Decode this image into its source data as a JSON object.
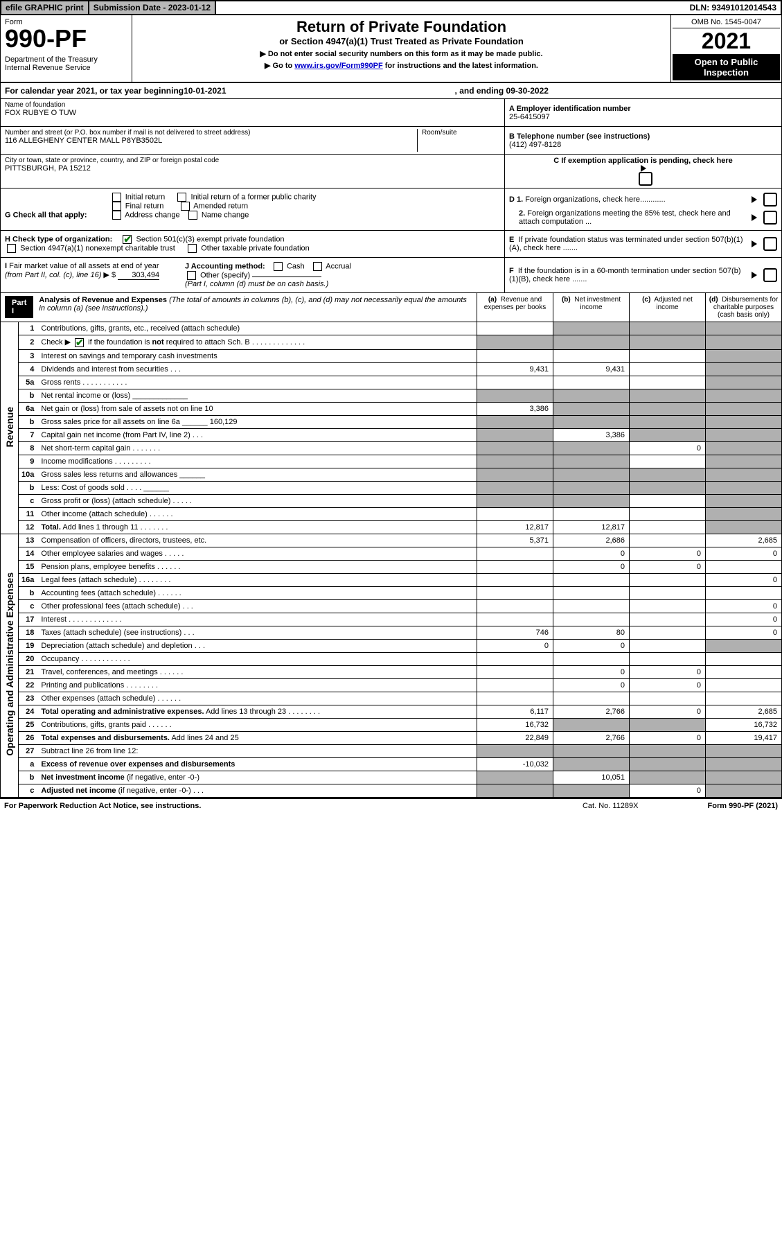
{
  "topbar": {
    "efile": "efile GRAPHIC print",
    "submission": "Submission Date - 2023-01-12",
    "dln": "DLN: 93491012014543"
  },
  "header": {
    "form_label": "Form",
    "form_no": "990-PF",
    "dept": "Department of the Treasury\nInternal Revenue Service",
    "title": "Return of Private Foundation",
    "subtitle": "or Section 4947(a)(1) Trust Treated as Private Foundation",
    "instr1": "▶ Do not enter social security numbers on this form as it may be made public.",
    "instr2_pre": "▶ Go to ",
    "instr2_link": "www.irs.gov/Form990PF",
    "instr2_post": " for instructions and the latest information.",
    "omb": "OMB No. 1545-0047",
    "year": "2021",
    "open_public": "Open to Public Inspection"
  },
  "calendar": {
    "text_pre": "For calendar year 2021, or tax year beginning ",
    "begin": "10-01-2021",
    "text_mid": ", and ending ",
    "end": "09-30-2022"
  },
  "entity": {
    "name_label": "Name of foundation",
    "name": "FOX RUBYE O TUW",
    "addr_label": "Number and street (or P.O. box number if mail is not delivered to street address)",
    "addr": "116 ALLEGHENY CENTER MALL P8YB3502L",
    "room_label": "Room/suite",
    "city_label": "City or town, state or province, country, and ZIP or foreign postal code",
    "city": "PITTSBURGH, PA  15212",
    "ein_label": "A Employer identification number",
    "ein": "25-6415097",
    "phone_label": "B Telephone number (see instructions)",
    "phone": "(412) 497-8128",
    "c_label": "C If exemption application is pending, check here"
  },
  "checks": {
    "g_label": "G Check all that apply:",
    "g_opts": [
      "Initial return",
      "Initial return of a former public charity",
      "Final return",
      "Amended return",
      "Address change",
      "Name change"
    ],
    "h_label": "H Check type of organization:",
    "h_opts": [
      "Section 501(c)(3) exempt private foundation",
      "Section 4947(a)(1) nonexempt charitable trust",
      "Other taxable private foundation"
    ],
    "i_label": "I Fair market value of all assets at end of year (from Part II, col. (c), line 16) ▶ $",
    "i_value": "303,494",
    "j_label": "J Accounting method:",
    "j_opts": [
      "Cash",
      "Accrual",
      "Other (specify)"
    ],
    "j_note": "(Part I, column (d) must be on cash basis.)",
    "d1": "D 1. Foreign organizations, check here............",
    "d2": "2. Foreign organizations meeting the 85% test, check here and attach computation ...",
    "e": "E  If private foundation status was terminated under section 507(b)(1)(A), check here .......",
    "f": "F  If the foundation is in a 60-month termination under section 507(b)(1)(B), check here .......",
    "schb": "Check ▶ ✔ if the foundation is not required to attach Sch. B"
  },
  "part1": {
    "label": "Part I",
    "title": "Analysis of Revenue and Expenses",
    "note": "(The total of amounts in columns (b), (c), and (d) may not necessarily equal the amounts in column (a) (see instructions).)",
    "cols": {
      "a": "(a)  Revenue and expenses per books",
      "b": "(b)  Net investment income",
      "c": "(c)  Adjusted net income",
      "d": "(d)  Disbursements for charitable purposes (cash basis only)"
    }
  },
  "side_labels": {
    "revenue": "Revenue",
    "expenses": "Operating and Administrative Expenses"
  },
  "rows": [
    {
      "n": "1",
      "l": "Contributions, gifts, grants, etc., received (attach schedule)",
      "a": "",
      "b": "s",
      "c": "s",
      "d": "s"
    },
    {
      "n": "2",
      "l": "__SCHB__",
      "a": "s",
      "b": "s",
      "c": "s",
      "d": "s"
    },
    {
      "n": "3",
      "l": "Interest on savings and temporary cash investments",
      "a": "",
      "b": "",
      "c": "",
      "d": "s"
    },
    {
      "n": "4",
      "l": "Dividends and interest from securities   .   .   .",
      "a": "9,431",
      "b": "9,431",
      "c": "",
      "d": "s"
    },
    {
      "n": "5a",
      "l": "Gross rents   .   .   .   .   .   .   .   .   .   .   .",
      "a": "",
      "b": "",
      "c": "",
      "d": "s"
    },
    {
      "n": "b",
      "l": "Net rental income or (loss)  _____________",
      "a": "s",
      "b": "s",
      "c": "s",
      "d": "s"
    },
    {
      "n": "6a",
      "l": "Net gain or (loss) from sale of assets not on line 10",
      "a": "3,386",
      "b": "s",
      "c": "s",
      "d": "s"
    },
    {
      "n": "b",
      "l": "Gross sales price for all assets on line 6a ______ 160,129",
      "a": "s",
      "b": "s",
      "c": "s",
      "d": "s"
    },
    {
      "n": "7",
      "l": "Capital gain net income (from Part IV, line 2)   .   .   .",
      "a": "s",
      "b": "3,386",
      "c": "s",
      "d": "s"
    },
    {
      "n": "8",
      "l": "Net short-term capital gain   .   .   .   .   .   .   .",
      "a": "s",
      "b": "s",
      "c": "0",
      "d": "s"
    },
    {
      "n": "9",
      "l": "Income modifications   .   .   .   .   .   .   .   .   .",
      "a": "s",
      "b": "s",
      "c": "",
      "d": "s"
    },
    {
      "n": "10a",
      "l": "Gross sales less returns and allowances  ______",
      "a": "s",
      "b": "s",
      "c": "s",
      "d": "s"
    },
    {
      "n": "b",
      "l": "Less: Cost of goods sold    .   .   .   .   ______",
      "a": "s",
      "b": "s",
      "c": "s",
      "d": "s"
    },
    {
      "n": "c",
      "l": "Gross profit or (loss) (attach schedule)    .   .   .   .   .",
      "a": "s",
      "b": "s",
      "c": "",
      "d": "s"
    },
    {
      "n": "11",
      "l": "Other income (attach schedule)    .   .   .   .   .   .",
      "a": "",
      "b": "",
      "c": "",
      "d": "s"
    },
    {
      "n": "12",
      "l": "<b>Total.</b> Add lines 1 through 11   .   .   .   .   .   .   .",
      "a": "12,817",
      "b": "12,817",
      "c": "",
      "d": "s"
    },
    {
      "n": "13",
      "l": "Compensation of officers, directors, trustees, etc.",
      "a": "5,371",
      "b": "2,686",
      "c": "",
      "d": "2,685"
    },
    {
      "n": "14",
      "l": "Other employee salaries and wages    .   .   .   .   .",
      "a": "",
      "b": "0",
      "c": "0",
      "d": "0"
    },
    {
      "n": "15",
      "l": "Pension plans, employee benefits   .   .   .   .   .   .",
      "a": "",
      "b": "0",
      "c": "0",
      "d": ""
    },
    {
      "n": "16a",
      "l": "Legal fees (attach schedule)   .   .   .   .   .   .   .   .",
      "a": "",
      "b": "",
      "c": "",
      "d": "0"
    },
    {
      "n": "b",
      "l": "Accounting fees (attach schedule)   .   .   .   .   .   .",
      "a": "",
      "b": "",
      "c": "",
      "d": ""
    },
    {
      "n": "c",
      "l": "Other professional fees (attach schedule)    .   .   .",
      "a": "",
      "b": "",
      "c": "",
      "d": "0"
    },
    {
      "n": "17",
      "l": "Interest   .   .   .   .   .   .   .   .   .   .   .   .   .",
      "a": "",
      "b": "",
      "c": "",
      "d": "0"
    },
    {
      "n": "18",
      "l": "Taxes (attach schedule) (see instructions)    .   .   .",
      "a": "746",
      "b": "80",
      "c": "",
      "d": "0"
    },
    {
      "n": "19",
      "l": "Depreciation (attach schedule) and depletion    .   .   .",
      "a": "0",
      "b": "0",
      "c": "",
      "d": "s"
    },
    {
      "n": "20",
      "l": "Occupancy   .   .   .   .   .   .   .   .   .   .   .   .",
      "a": "",
      "b": "",
      "c": "",
      "d": ""
    },
    {
      "n": "21",
      "l": "Travel, conferences, and meetings   .   .   .   .   .   .",
      "a": "",
      "b": "0",
      "c": "0",
      "d": ""
    },
    {
      "n": "22",
      "l": "Printing and publications   .   .   .   .   .   .   .   .",
      "a": "",
      "b": "0",
      "c": "0",
      "d": ""
    },
    {
      "n": "23",
      "l": "Other expenses (attach schedule)   .   .   .   .   .   .",
      "a": "",
      "b": "",
      "c": "",
      "d": ""
    },
    {
      "n": "24",
      "l": "<b>Total operating and administrative expenses.</b> Add lines 13 through 23   .   .   .   .   .   .   .   .",
      "a": "6,117",
      "b": "2,766",
      "c": "0",
      "d": "2,685"
    },
    {
      "n": "25",
      "l": "Contributions, gifts, grants paid    .   .   .   .   .   .",
      "a": "16,732",
      "b": "s",
      "c": "s",
      "d": "16,732"
    },
    {
      "n": "26",
      "l": "<b>Total expenses and disbursements.</b> Add lines 24 and 25",
      "a": "22,849",
      "b": "2,766",
      "c": "0",
      "d": "19,417"
    },
    {
      "n": "27",
      "l": "Subtract line 26 from line 12:",
      "a": "s",
      "b": "s",
      "c": "s",
      "d": "s"
    },
    {
      "n": "a",
      "l": "<b>Excess of revenue over expenses and disbursements</b>",
      "a": "-10,032",
      "b": "s",
      "c": "s",
      "d": "s"
    },
    {
      "n": "b",
      "l": "<b>Net investment income</b> (if negative, enter -0-)",
      "a": "s",
      "b": "10,051",
      "c": "s",
      "d": "s"
    },
    {
      "n": "c",
      "l": "<b>Adjusted net income</b> (if negative, enter -0-)   .   .   .",
      "a": "s",
      "b": "s",
      "c": "0",
      "d": "s"
    }
  ],
  "footer": {
    "left": "For Paperwork Reduction Act Notice, see instructions.",
    "mid": "Cat. No. 11289X",
    "right": "Form 990-PF (2021)"
  }
}
